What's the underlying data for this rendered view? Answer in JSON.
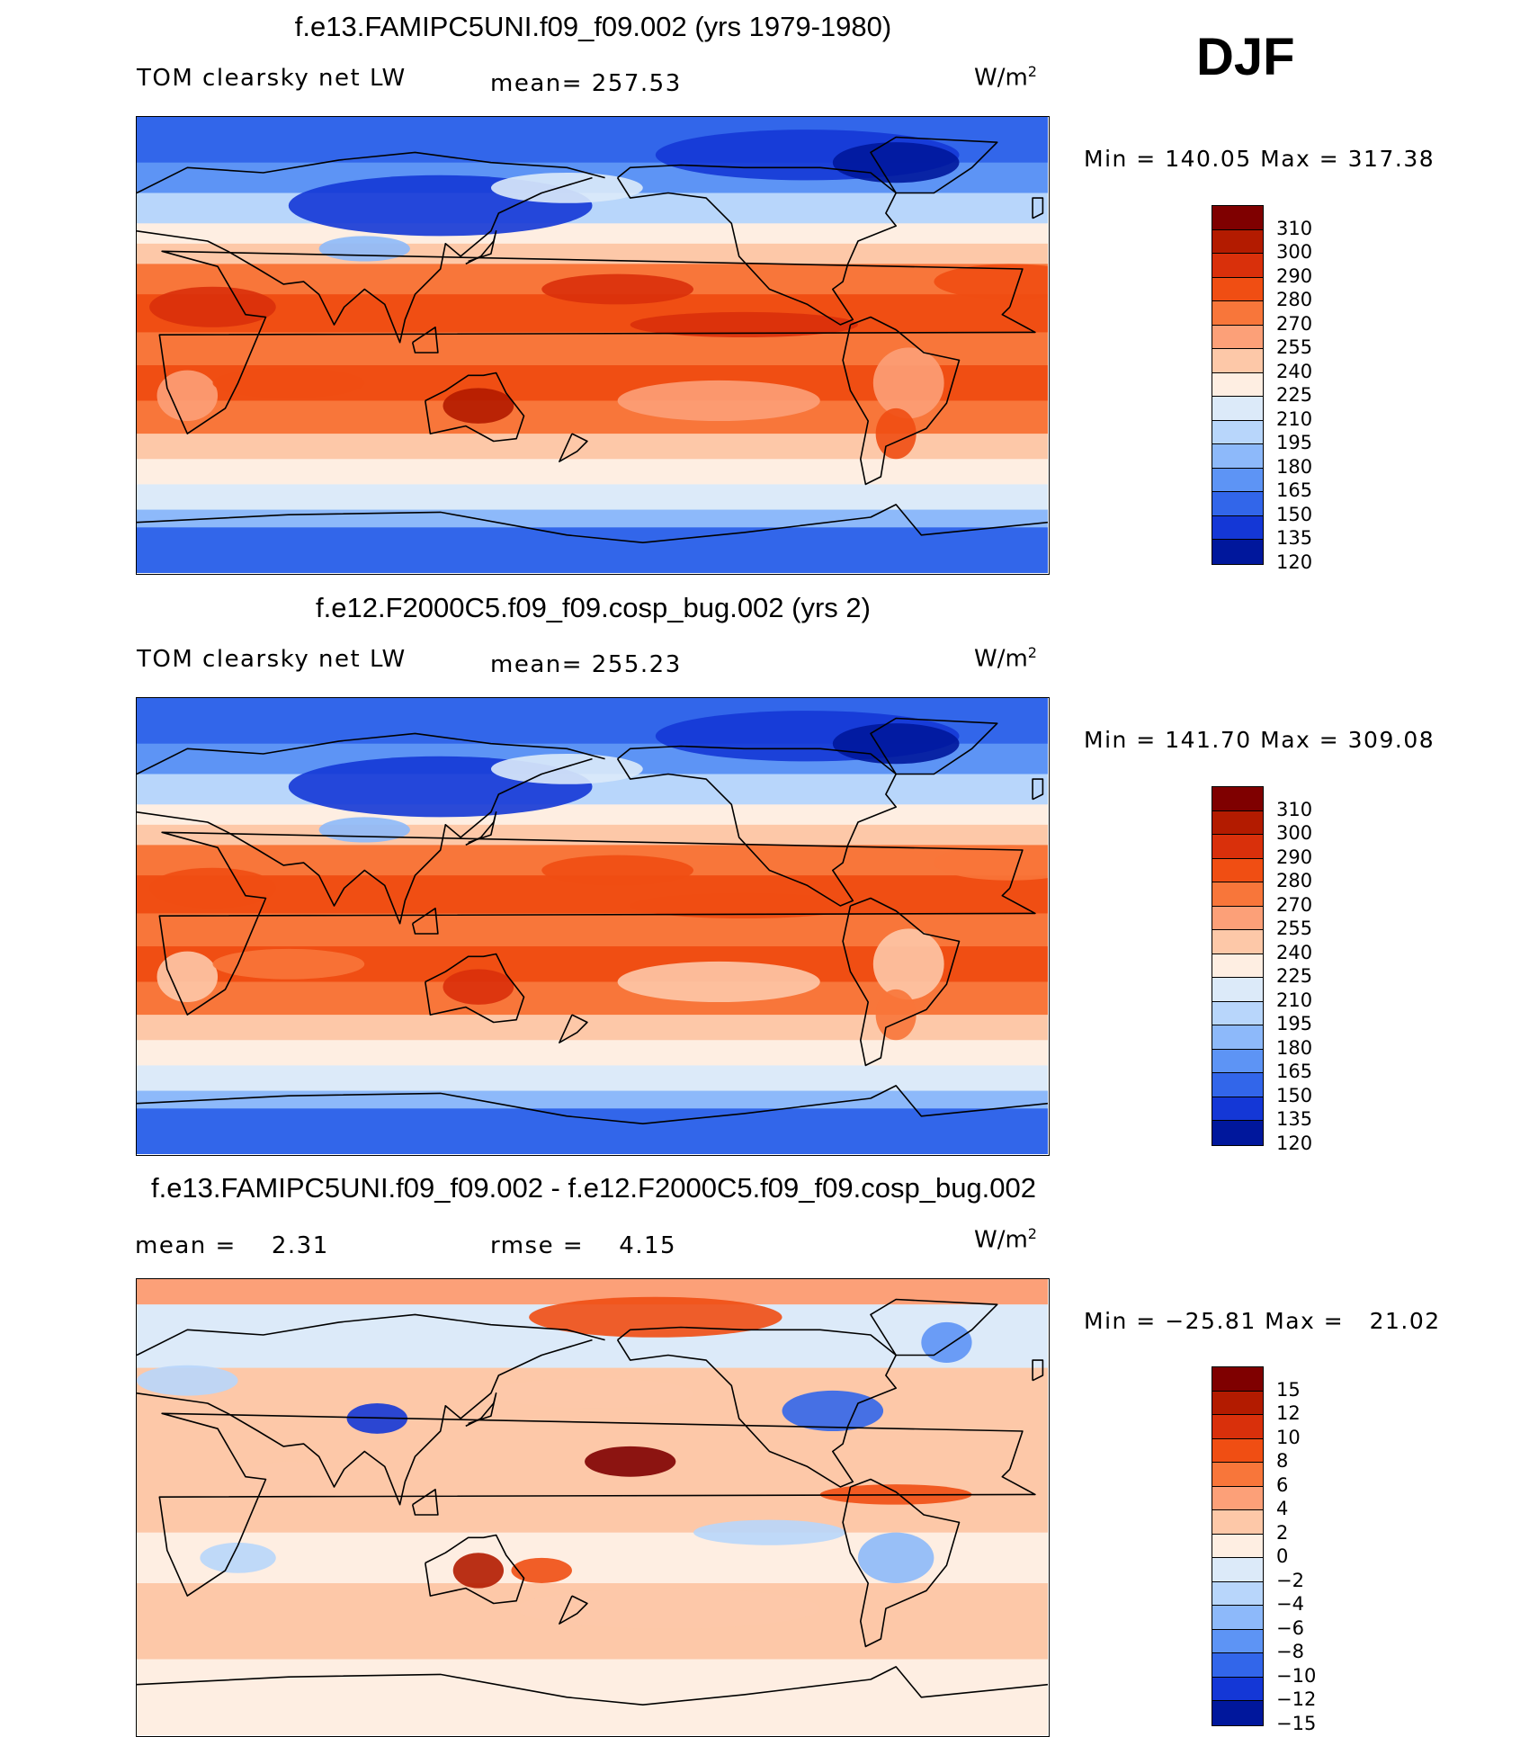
{
  "season": "DJF",
  "units_base": "W/m",
  "units_exp": "2",
  "palette_temp": [
    "#7f0000",
    "#b31b00",
    "#d9300b",
    "#f04e13",
    "#f8763a",
    "#fca078",
    "#fdc8a8",
    "#feeee2",
    "#dceaf9",
    "#b8d6fb",
    "#8db9fa",
    "#5d94f5",
    "#3266ea",
    "#1437d6",
    "#00179c"
  ],
  "palette_diff": [
    "#7f0000",
    "#b31b00",
    "#d9300b",
    "#f04e13",
    "#f8763a",
    "#fca078",
    "#fdc8a8",
    "#feeee2",
    "#dceaf9",
    "#b8d6fb",
    "#8db9fa",
    "#5d94f5",
    "#3266ea",
    "#1437d6",
    "#00179c"
  ],
  "coast_color": "#000000",
  "chart_data": [
    {
      "type": "heatmap",
      "title": "f.e13.FAMIPC5UNI.f09_f09.002 (yrs 1979-1980)",
      "left_label": "TOM clearsky net LW",
      "mean_text": "mean= 257.53",
      "minmax_text": "Min = 140.05 Max = 317.38",
      "min": 140.05,
      "max": 317.38,
      "mean": 257.53,
      "levels": [
        "310",
        "300",
        "290",
        "280",
        "270",
        "255",
        "240",
        "225",
        "210",
        "195",
        "180",
        "165",
        "150",
        "135",
        "120"
      ]
    },
    {
      "type": "heatmap",
      "title": "f.e12.F2000C5.f09_f09.cosp_bug.002 (yrs 2)",
      "left_label": "TOM clearsky net LW",
      "mean_text": "mean= 255.23",
      "minmax_text": "Min = 141.70 Max = 309.08",
      "min": 141.7,
      "max": 309.08,
      "mean": 255.23,
      "levels": [
        "310",
        "300",
        "290",
        "280",
        "270",
        "255",
        "240",
        "225",
        "210",
        "195",
        "180",
        "165",
        "150",
        "135",
        "120"
      ]
    },
    {
      "type": "heatmap",
      "title": "f.e13.FAMIPC5UNI.f09_f09.002 - f.e12.F2000C5.f09_f09.cosp_bug.002",
      "left_label": "mean =    2.31",
      "mean_text": "rmse =    4.15",
      "minmax_text": "Min = −25.81 Max =   21.02",
      "min": -25.81,
      "max": 21.02,
      "mean": 2.31,
      "rmse": 4.15,
      "levels": [
        "15",
        "12",
        "10",
        "8",
        "6",
        "4",
        "2",
        "0",
        "−2",
        "−4",
        "−6",
        "−8",
        "−10",
        "−12",
        "−15"
      ]
    }
  ]
}
